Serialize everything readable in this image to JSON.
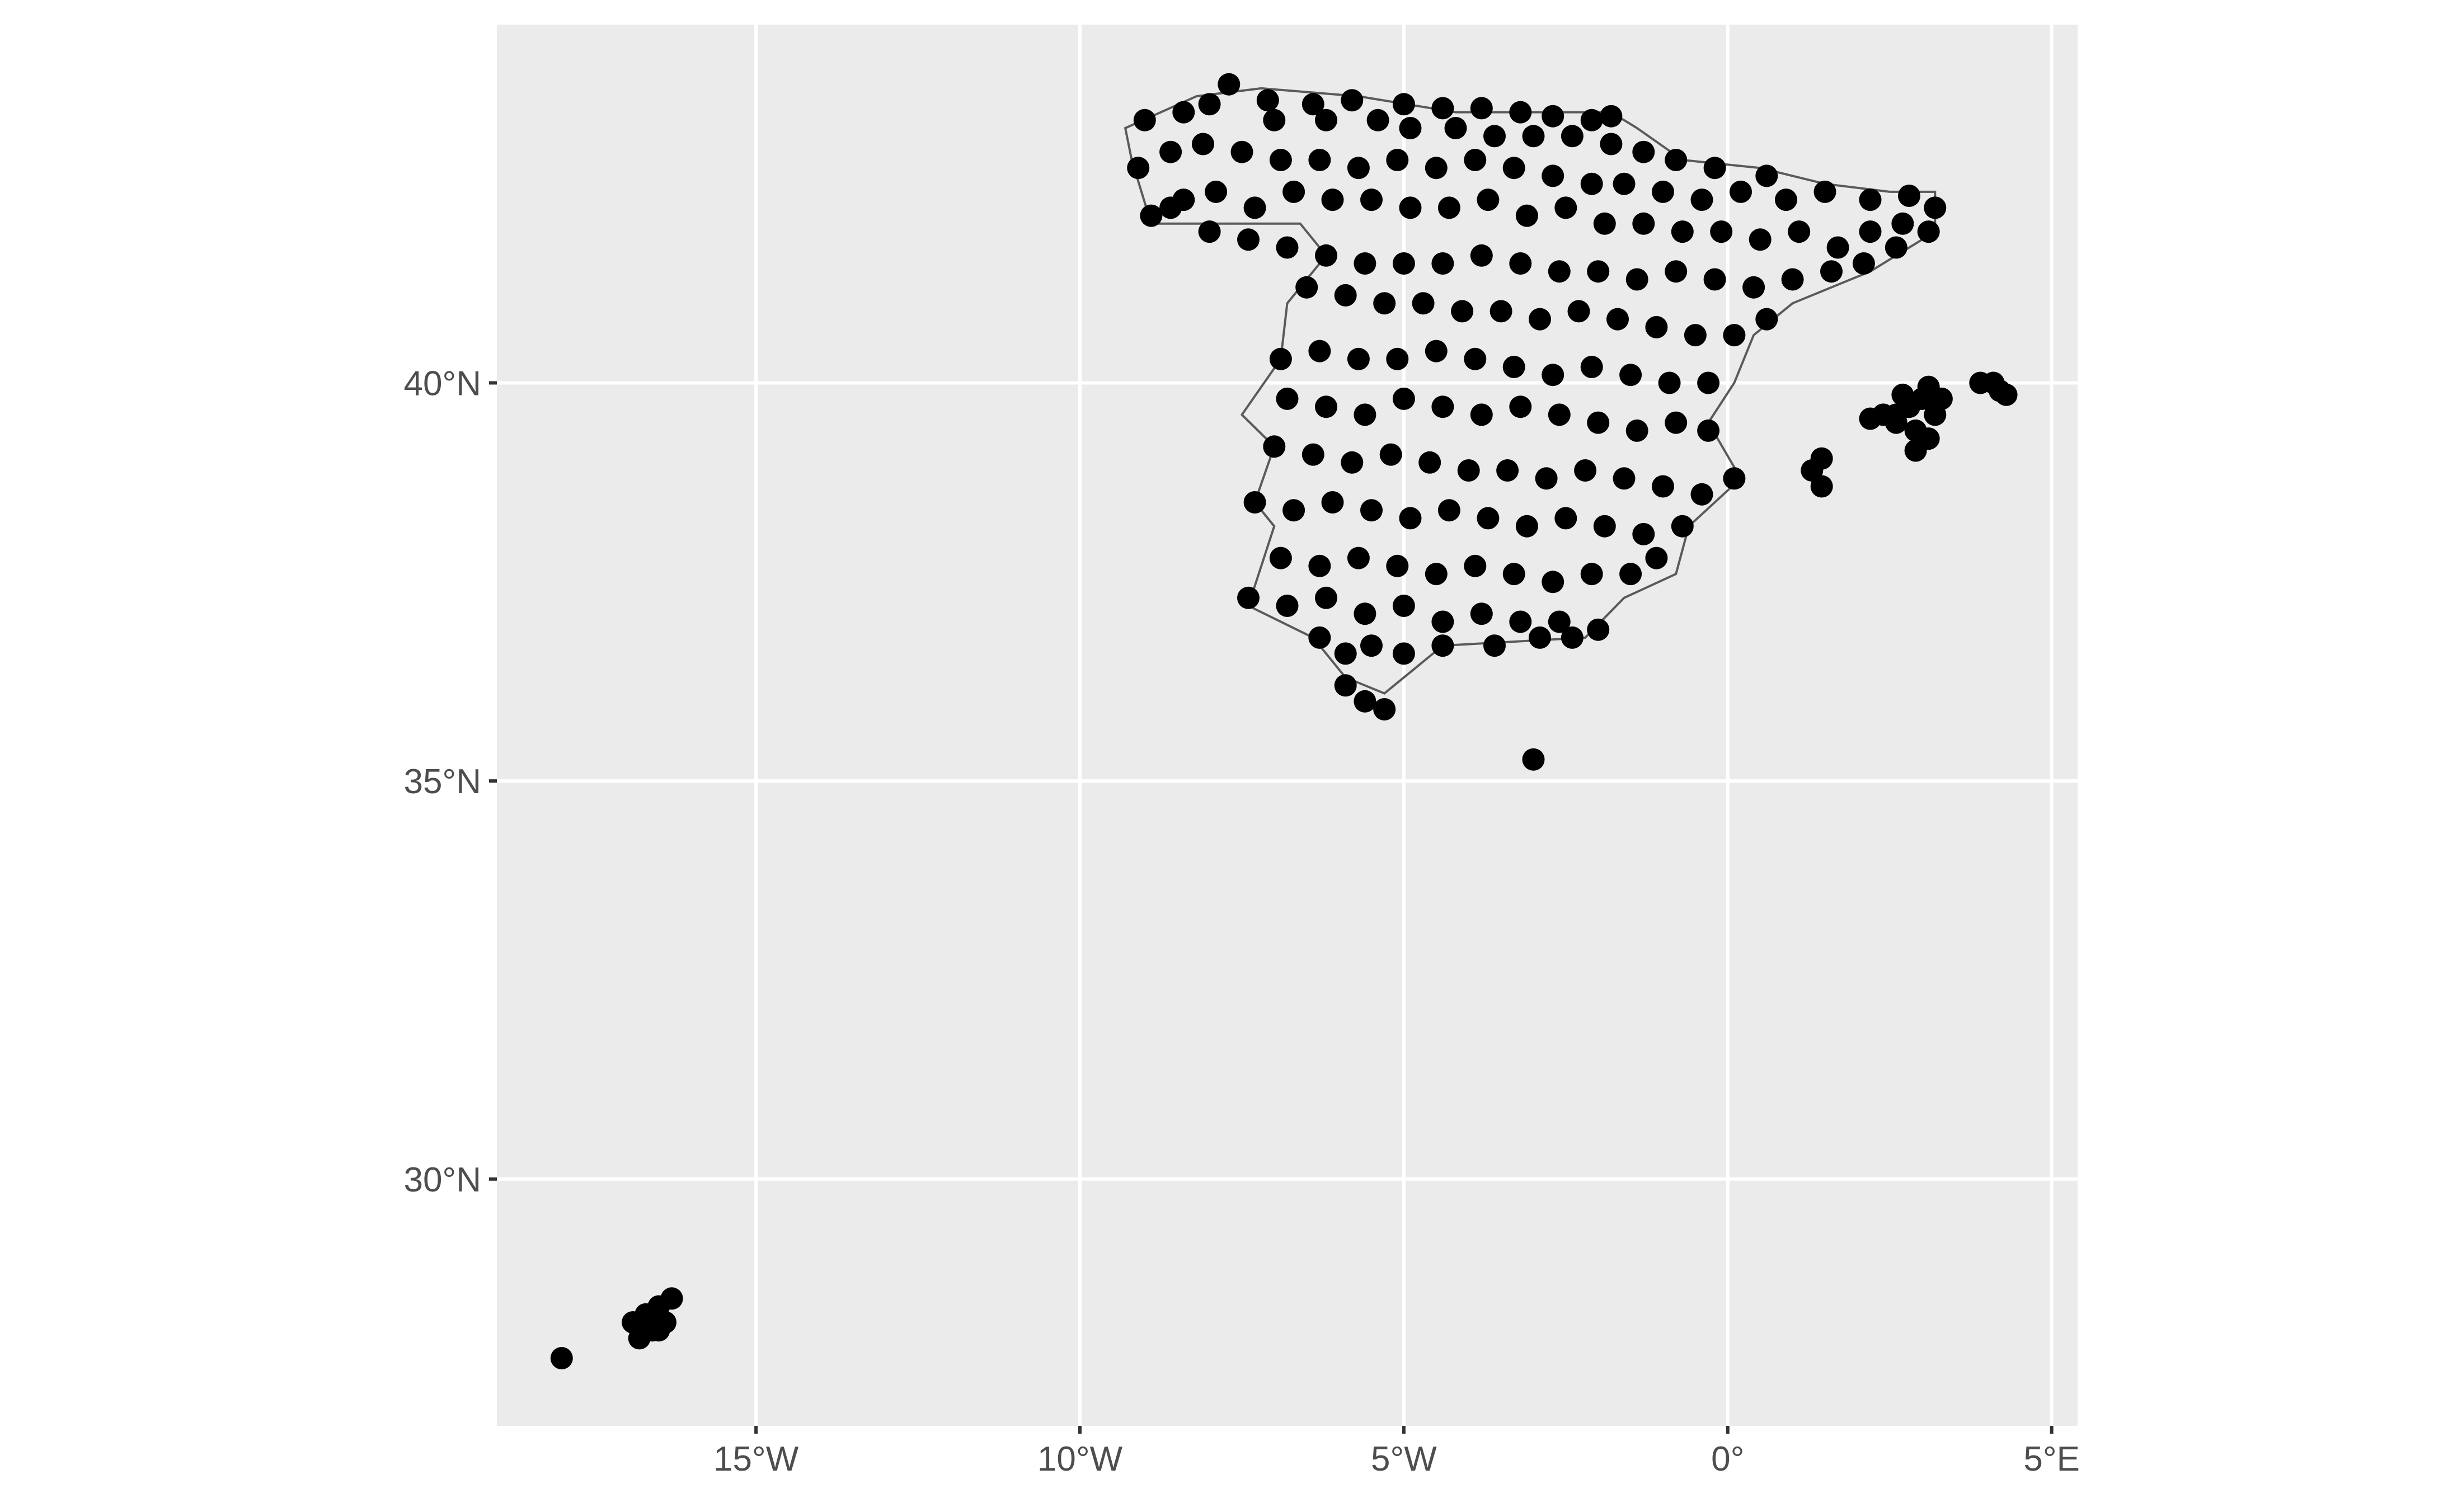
{
  "chart_data": {
    "type": "scatter",
    "title": "",
    "xlabel": "",
    "ylabel": "",
    "xlim": [
      -19.0,
      5.4
    ],
    "ylim": [
      26.9,
      44.5
    ],
    "x_ticks": [
      {
        "value": -15,
        "label": "15°W"
      },
      {
        "value": -10,
        "label": "10°W"
      },
      {
        "value": -5,
        "label": "5°W"
      },
      {
        "value": 0,
        "label": "0°"
      },
      {
        "value": 5,
        "label": "5°E"
      }
    ],
    "y_ticks": [
      {
        "value": 30,
        "label": "30°N"
      },
      {
        "value": 35,
        "label": "35°N"
      },
      {
        "value": 40,
        "label": "40°N"
      }
    ],
    "grid": true,
    "colors": {
      "panel_background": "#ebebeb",
      "grid": "#ffffff",
      "points": "#000000",
      "borders": "#5a5a5a",
      "tick_label": "#4d4d4d"
    },
    "series": [
      {
        "points": [
          [
            -7.7,
            43.75
          ],
          [
            -7.1,
            43.55
          ],
          [
            -6.4,
            43.5
          ],
          [
            -5.8,
            43.55
          ],
          [
            -5.0,
            43.5
          ],
          [
            -4.4,
            43.45
          ],
          [
            -3.8,
            43.45
          ],
          [
            -3.2,
            43.4
          ],
          [
            -2.7,
            43.35
          ],
          [
            -2.1,
            43.3
          ],
          [
            -1.8,
            43.35
          ],
          [
            -9.0,
            43.3
          ],
          [
            -8.4,
            43.4
          ],
          [
            -8.0,
            43.5
          ],
          [
            -7.0,
            43.3
          ],
          [
            -6.2,
            43.3
          ],
          [
            -5.4,
            43.3
          ],
          [
            -4.9,
            43.2
          ],
          [
            -4.2,
            43.2
          ],
          [
            -3.6,
            43.1
          ],
          [
            -3.0,
            43.1
          ],
          [
            -2.4,
            43.1
          ],
          [
            -1.8,
            43.0
          ],
          [
            -1.3,
            42.9
          ],
          [
            -0.8,
            42.8
          ],
          [
            -0.2,
            42.7
          ],
          [
            0.6,
            42.6
          ],
          [
            -9.1,
            42.7
          ],
          [
            -8.6,
            42.9
          ],
          [
            -8.1,
            43.0
          ],
          [
            -7.5,
            42.9
          ],
          [
            -6.9,
            42.8
          ],
          [
            -6.3,
            42.8
          ],
          [
            -5.7,
            42.7
          ],
          [
            -5.1,
            42.8
          ],
          [
            -4.5,
            42.7
          ],
          [
            -3.9,
            42.8
          ],
          [
            -3.3,
            42.7
          ],
          [
            -2.7,
            42.6
          ],
          [
            -2.1,
            42.5
          ],
          [
            -1.6,
            42.5
          ],
          [
            -1.0,
            42.4
          ],
          [
            -0.4,
            42.3
          ],
          [
            0.2,
            42.4
          ],
          [
            0.9,
            42.3
          ],
          [
            1.5,
            42.4
          ],
          [
            2.2,
            42.3
          ],
          [
            2.8,
            42.35
          ],
          [
            3.2,
            42.2
          ],
          [
            -8.9,
            42.1
          ],
          [
            -8.4,
            42.3
          ],
          [
            -7.9,
            42.4
          ],
          [
            -7.3,
            42.2
          ],
          [
            -6.7,
            42.4
          ],
          [
            -6.1,
            42.3
          ],
          [
            -5.5,
            42.3
          ],
          [
            -4.9,
            42.2
          ],
          [
            -4.3,
            42.2
          ],
          [
            -3.7,
            42.3
          ],
          [
            -3.1,
            42.1
          ],
          [
            -2.5,
            42.2
          ],
          [
            -1.9,
            42.0
          ],
          [
            -1.3,
            42.0
          ],
          [
            -0.7,
            41.9
          ],
          [
            -0.1,
            41.9
          ],
          [
            0.5,
            41.8
          ],
          [
            1.1,
            41.9
          ],
          [
            1.7,
            41.7
          ],
          [
            2.2,
            41.9
          ],
          [
            2.7,
            42.0
          ],
          [
            3.1,
            41.9
          ],
          [
            -8.6,
            42.2
          ],
          [
            -8.0,
            41.9
          ],
          [
            -7.4,
            41.8
          ],
          [
            -6.8,
            41.7
          ],
          [
            -6.2,
            41.6
          ],
          [
            -5.6,
            41.5
          ],
          [
            -5.0,
            41.5
          ],
          [
            -4.4,
            41.5
          ],
          [
            -3.8,
            41.6
          ],
          [
            -3.2,
            41.5
          ],
          [
            -2.6,
            41.4
          ],
          [
            -2.0,
            41.4
          ],
          [
            -1.4,
            41.3
          ],
          [
            -0.8,
            41.4
          ],
          [
            -0.2,
            41.3
          ],
          [
            0.4,
            41.2
          ],
          [
            1.0,
            41.3
          ],
          [
            1.6,
            41.4
          ],
          [
            2.1,
            41.5
          ],
          [
            2.6,
            41.7
          ],
          [
            -6.5,
            41.2
          ],
          [
            -5.9,
            41.1
          ],
          [
            -5.3,
            41.0
          ],
          [
            -4.7,
            41.0
          ],
          [
            -4.1,
            40.9
          ],
          [
            -3.5,
            40.9
          ],
          [
            -2.9,
            40.8
          ],
          [
            -2.3,
            40.9
          ],
          [
            -1.7,
            40.8
          ],
          [
            -1.1,
            40.7
          ],
          [
            -0.5,
            40.6
          ],
          [
            0.1,
            40.6
          ],
          [
            0.6,
            40.8
          ],
          [
            -6.9,
            40.3
          ],
          [
            -6.3,
            40.4
          ],
          [
            -5.7,
            40.3
          ],
          [
            -5.1,
            40.3
          ],
          [
            -4.5,
            40.4
          ],
          [
            -3.9,
            40.3
          ],
          [
            -3.3,
            40.2
          ],
          [
            -2.7,
            40.1
          ],
          [
            -2.1,
            40.2
          ],
          [
            -1.5,
            40.1
          ],
          [
            -0.9,
            40.0
          ],
          [
            -0.3,
            40.0
          ],
          [
            -6.8,
            39.8
          ],
          [
            -6.2,
            39.7
          ],
          [
            -5.6,
            39.6
          ],
          [
            -5.0,
            39.8
          ],
          [
            -4.4,
            39.7
          ],
          [
            -3.8,
            39.6
          ],
          [
            -3.2,
            39.7
          ],
          [
            -2.6,
            39.6
          ],
          [
            -2.0,
            39.5
          ],
          [
            -1.4,
            39.4
          ],
          [
            -0.8,
            39.5
          ],
          [
            -0.3,
            39.4
          ],
          [
            -7.0,
            39.2
          ],
          [
            -6.4,
            39.1
          ],
          [
            -5.8,
            39.0
          ],
          [
            -5.2,
            39.1
          ],
          [
            -4.6,
            39.0
          ],
          [
            -4.0,
            38.9
          ],
          [
            -3.4,
            38.9
          ],
          [
            -2.8,
            38.8
          ],
          [
            -2.2,
            38.9
          ],
          [
            -1.6,
            38.8
          ],
          [
            -1.0,
            38.7
          ],
          [
            -0.4,
            38.6
          ],
          [
            0.1,
            38.8
          ],
          [
            -7.3,
            38.5
          ],
          [
            -6.7,
            38.4
          ],
          [
            -6.1,
            38.5
          ],
          [
            -5.5,
            38.4
          ],
          [
            -4.9,
            38.3
          ],
          [
            -4.3,
            38.4
          ],
          [
            -3.7,
            38.3
          ],
          [
            -3.1,
            38.2
          ],
          [
            -2.5,
            38.3
          ],
          [
            -1.9,
            38.2
          ],
          [
            -1.3,
            38.1
          ],
          [
            -0.7,
            38.2
          ],
          [
            -6.9,
            37.8
          ],
          [
            -6.3,
            37.7
          ],
          [
            -5.7,
            37.8
          ],
          [
            -5.1,
            37.7
          ],
          [
            -4.5,
            37.6
          ],
          [
            -3.9,
            37.7
          ],
          [
            -3.3,
            37.6
          ],
          [
            -2.7,
            37.5
          ],
          [
            -2.1,
            37.6
          ],
          [
            -1.5,
            37.6
          ],
          [
            -1.1,
            37.8
          ],
          [
            -7.4,
            37.3
          ],
          [
            -6.8,
            37.2
          ],
          [
            -6.2,
            37.3
          ],
          [
            -5.6,
            37.1
          ],
          [
            -5.0,
            37.2
          ],
          [
            -4.4,
            37.0
          ],
          [
            -3.8,
            37.1
          ],
          [
            -3.2,
            37.0
          ],
          [
            -2.6,
            37.0
          ],
          [
            -2.0,
            36.9
          ],
          [
            -6.3,
            36.8
          ],
          [
            -5.9,
            36.6
          ],
          [
            -5.5,
            36.7
          ],
          [
            -5.0,
            36.6
          ],
          [
            -4.4,
            36.7
          ],
          [
            -3.6,
            36.7
          ],
          [
            -2.9,
            36.8
          ],
          [
            -2.4,
            36.8
          ],
          [
            -5.9,
            36.2
          ],
          [
            -5.6,
            36.0
          ],
          [
            -5.3,
            35.9
          ],
          [
            -3.0,
            35.27
          ],
          [
            1.3,
            38.9
          ],
          [
            1.45,
            39.05
          ],
          [
            1.45,
            38.7
          ],
          [
            2.6,
            39.6
          ],
          [
            2.8,
            39.7
          ],
          [
            3.0,
            39.8
          ],
          [
            3.2,
            39.6
          ],
          [
            2.9,
            39.4
          ],
          [
            3.1,
            39.3
          ],
          [
            2.6,
            39.5
          ],
          [
            2.4,
            39.6
          ],
          [
            3.3,
            39.8
          ],
          [
            2.7,
            39.85
          ],
          [
            3.1,
            39.95
          ],
          [
            2.9,
            39.15
          ],
          [
            2.2,
            39.55
          ],
          [
            3.9,
            40.0
          ],
          [
            4.1,
            40.0
          ],
          [
            4.2,
            39.9
          ],
          [
            4.3,
            39.85
          ],
          [
            -16.9,
            28.2
          ],
          [
            -16.7,
            28.3
          ],
          [
            -16.5,
            28.4
          ],
          [
            -16.3,
            28.5
          ],
          [
            -16.6,
            28.1
          ],
          [
            -16.8,
            28.0
          ],
          [
            -16.4,
            28.2
          ],
          [
            -16.6,
            28.25
          ],
          [
            -16.5,
            28.1
          ],
          [
            -18.0,
            27.75
          ]
        ]
      }
    ],
    "borders": [
      {
        "region": "Spain",
        "coords": [
          [
            -9.3,
            43.2
          ],
          [
            -8.2,
            43.6
          ],
          [
            -7.2,
            43.7
          ],
          [
            -5.7,
            43.6
          ],
          [
            -4.2,
            43.4
          ],
          [
            -3.0,
            43.4
          ],
          [
            -1.8,
            43.4
          ],
          [
            -1.4,
            43.2
          ],
          [
            -0.7,
            42.8
          ],
          [
            0.5,
            42.7
          ],
          [
            1.5,
            42.5
          ],
          [
            2.5,
            42.4
          ],
          [
            3.2,
            42.4
          ],
          [
            3.2,
            41.9
          ],
          [
            2.2,
            41.4
          ],
          [
            1.0,
            41.0
          ],
          [
            0.4,
            40.6
          ],
          [
            0.1,
            40.0
          ],
          [
            -0.3,
            39.5
          ],
          [
            0.2,
            38.8
          ],
          [
            -0.6,
            38.2
          ],
          [
            -0.8,
            37.6
          ],
          [
            -1.6,
            37.3
          ],
          [
            -2.2,
            36.8
          ],
          [
            -4.4,
            36.7
          ],
          [
            -5.3,
            36.1
          ],
          [
            -5.9,
            36.3
          ],
          [
            -6.4,
            36.8
          ],
          [
            -7.4,
            37.2
          ],
          [
            -7.0,
            38.2
          ],
          [
            -7.3,
            38.5
          ],
          [
            -7.0,
            39.2
          ],
          [
            -7.5,
            39.6
          ],
          [
            -6.9,
            40.3
          ],
          [
            -6.8,
            41.0
          ],
          [
            -6.2,
            41.6
          ],
          [
            -6.6,
            42.0
          ],
          [
            -8.2,
            42.0
          ],
          [
            -8.9,
            42.0
          ],
          [
            -9.2,
            42.8
          ],
          [
            -9.3,
            43.2
          ]
        ]
      }
    ]
  }
}
